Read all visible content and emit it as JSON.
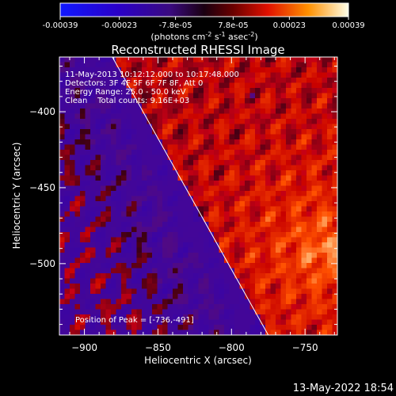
{
  "colorbar": {
    "tick_labels": [
      "-0.00039",
      "-0.00023",
      "-7.8e-05",
      "7.8e-05",
      "0.00023",
      "0.00039"
    ],
    "ticks": [
      -0.00039,
      -0.00023,
      -7.8e-05,
      7.8e-05,
      0.00023,
      0.00039
    ],
    "range": [
      -0.00039,
      0.00039
    ],
    "unit_parts": [
      "(photons cm",
      "-2",
      " s",
      "-1",
      " asec",
      "-2",
      ")"
    ]
  },
  "chart_data": {
    "type": "heatmap",
    "title": "Reconstructed RHESSI Image",
    "xlabel": "Heliocentric X (arcsec)",
    "ylabel": "Heliocentric Y (arcsec)",
    "xlim": [
      -917,
      -728
    ],
    "ylim": [
      -547,
      -364
    ],
    "x_tick_values": [
      -900,
      -850,
      -800,
      -750
    ],
    "x_tick_labels": [
      "−900",
      "−850",
      "−800",
      "−750"
    ],
    "y_tick_values": [
      -400,
      -450,
      -500
    ],
    "y_tick_labels": [
      "−400",
      "−450",
      "−500"
    ],
    "limb_line": [
      [
        -881,
        -364
      ],
      [
        -775,
        -547
      ]
    ],
    "peak": [
      -736,
      -491
    ],
    "annotations": [
      "11-May-2013 10:12:12.000 to 10:17:48.000",
      "Detectors: 3F 4F 5F 6F 7F 8F, Att 0",
      "Energy Range: 25.0 - 50.0 keV",
      "Clean    Total counts: 9.16E+03"
    ],
    "peak_label": "Position of Peak = [-736,-491]"
  },
  "footer_date": "13-May-2022 18:54"
}
